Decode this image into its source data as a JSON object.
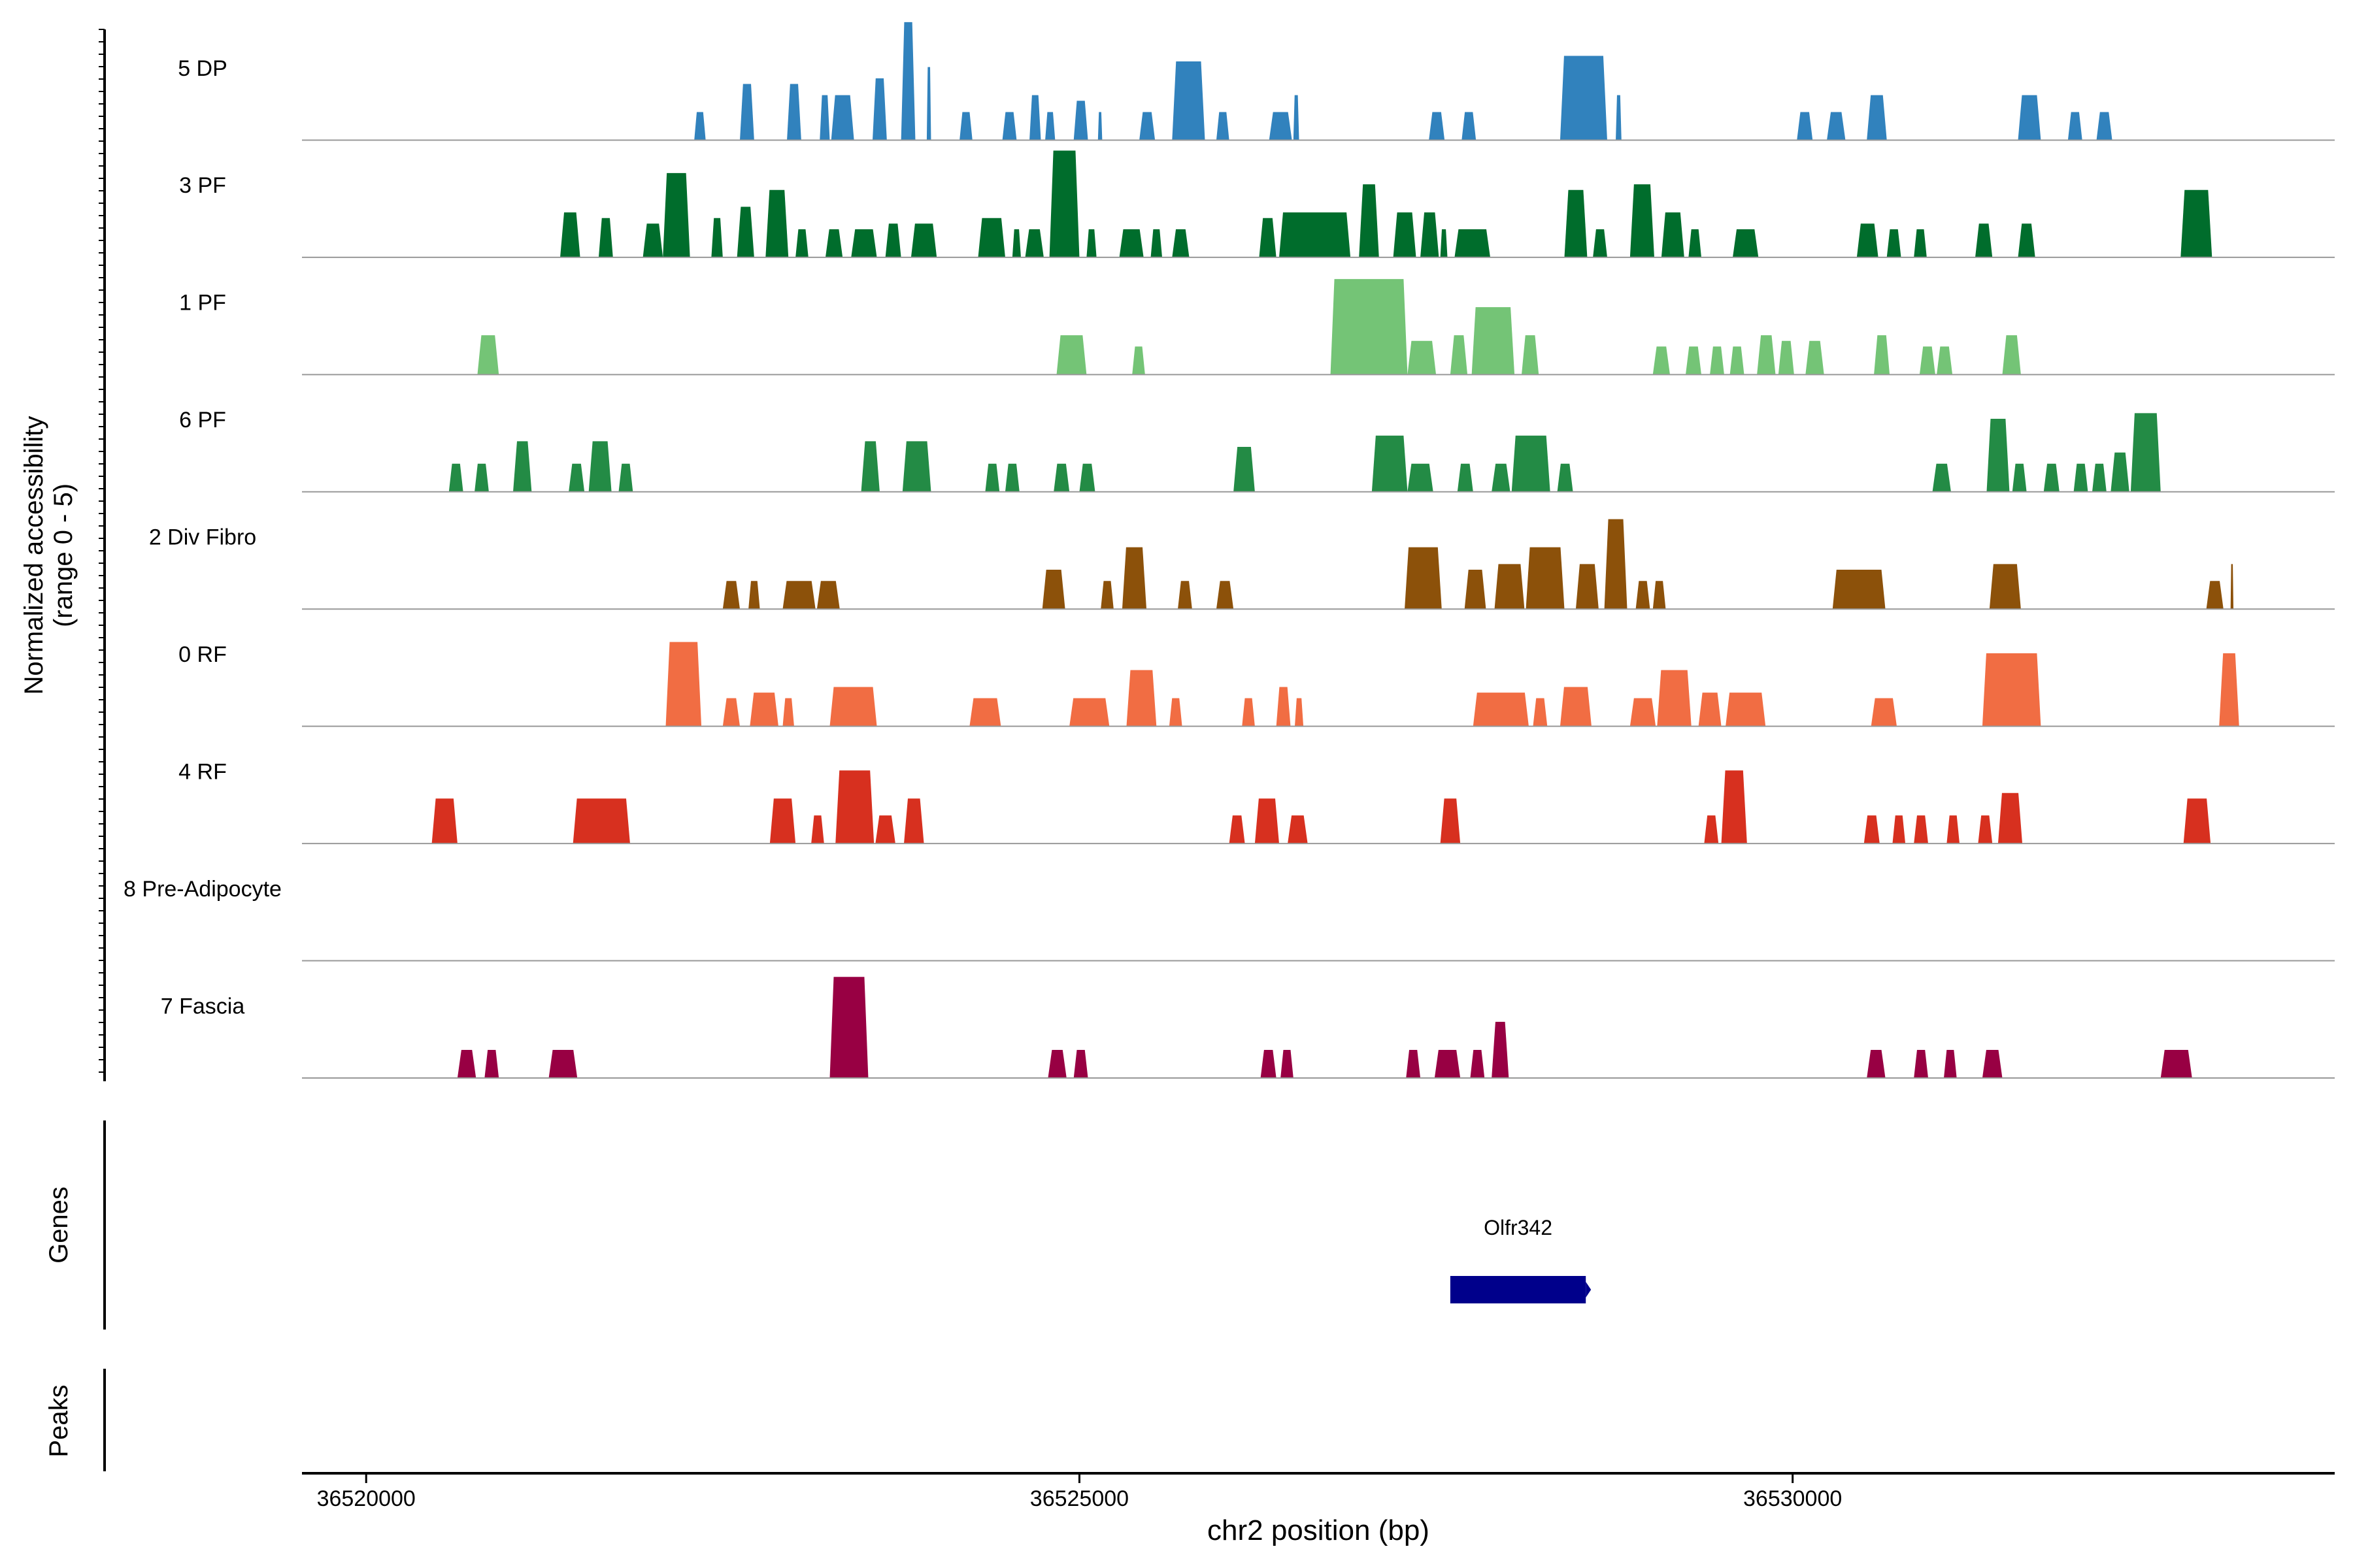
{
  "chart_data": {
    "type": "area",
    "title": "",
    "xlabel": "chr2 position (bp)",
    "ylabel": "Normalized accessibility",
    "ylabel_range": "(range 0 - 5)",
    "xlim": [
      36519550,
      36533800
    ],
    "ylim": [
      0,
      5
    ],
    "x_ticks": [
      36520000,
      36525000,
      36530000
    ],
    "x_tick_labels": [
      "36520000",
      "36525000",
      "36530000"
    ],
    "tracks": [
      {
        "name": "5 DP",
        "color": "#3182BD",
        "peaks": [
          [
            36522300,
            36522380,
            1.0
          ],
          [
            36522620,
            36522720,
            2.0
          ],
          [
            36522950,
            36523050,
            2.0
          ],
          [
            36523180,
            36523250,
            1.6
          ],
          [
            36523260,
            36523420,
            1.6
          ],
          [
            36523550,
            36523650,
            2.2
          ],
          [
            36523750,
            36523850,
            4.2
          ],
          [
            36523930,
            36523960,
            2.6
          ],
          [
            36524160,
            36524250,
            1.0
          ],
          [
            36524460,
            36524560,
            1.0
          ],
          [
            36524650,
            36524730,
            1.6
          ],
          [
            36524760,
            36524830,
            1.0
          ],
          [
            36524960,
            36525060,
            1.4
          ],
          [
            36525130,
            36525160,
            1.0
          ],
          [
            36525420,
            36525530,
            1.0
          ],
          [
            36525650,
            36525880,
            2.8
          ],
          [
            36525960,
            36526050,
            1.0
          ],
          [
            36526330,
            36526490,
            1.0
          ],
          [
            36526500,
            36526540,
            1.6
          ],
          [
            36527450,
            36527560,
            1.0
          ],
          [
            36527680,
            36527780,
            1.0
          ],
          [
            36528370,
            36528700,
            3.0
          ],
          [
            36528760,
            36528800,
            1.6
          ],
          [
            36530030,
            36530140,
            1.0
          ],
          [
            36530240,
            36530370,
            1.0
          ],
          [
            36530520,
            36530660,
            1.6
          ],
          [
            36531580,
            36531740,
            1.6
          ],
          [
            36531930,
            36532030,
            1.0
          ],
          [
            36532130,
            36532240,
            1.0
          ]
        ]
      },
      {
        "name": "3 PF",
        "color": "#006D2C",
        "peaks": [
          [
            36521360,
            36521500,
            1.6
          ],
          [
            36521630,
            36521730,
            1.4
          ],
          [
            36521940,
            36522080,
            1.2
          ],
          [
            36522080,
            36522270,
            3.0
          ],
          [
            36522420,
            36522500,
            1.4
          ],
          [
            36522600,
            36522720,
            1.8
          ],
          [
            36522800,
            36522960,
            2.4
          ],
          [
            36523010,
            36523100,
            1.0
          ],
          [
            36523220,
            36523340,
            1.0
          ],
          [
            36523400,
            36523580,
            1.0
          ],
          [
            36523640,
            36523750,
            1.2
          ],
          [
            36523820,
            36524000,
            1.2
          ],
          [
            36524290,
            36524480,
            1.4
          ],
          [
            36524530,
            36524590,
            1.0
          ],
          [
            36524620,
            36524750,
            1.0
          ],
          [
            36524790,
            36525000,
            3.8
          ],
          [
            36525050,
            36525120,
            1.0
          ],
          [
            36525280,
            36525450,
            1.0
          ],
          [
            36525500,
            36525580,
            1.0
          ],
          [
            36525650,
            36525770,
            1.0
          ],
          [
            36526260,
            36526380,
            1.4
          ],
          [
            36526400,
            36526900,
            1.6
          ],
          [
            36526960,
            36527100,
            2.6
          ],
          [
            36527200,
            36527360,
            1.6
          ],
          [
            36527390,
            36527520,
            1.6
          ],
          [
            36527530,
            36527580,
            1.0
          ],
          [
            36527630,
            36527880,
            1.0
          ],
          [
            36528400,
            36528560,
            2.4
          ],
          [
            36528600,
            36528700,
            1.0
          ],
          [
            36528860,
            36529030,
            2.6
          ],
          [
            36529080,
            36529240,
            1.6
          ],
          [
            36529270,
            36529360,
            1.0
          ],
          [
            36529580,
            36529760,
            1.0
          ],
          [
            36530450,
            36530600,
            1.2
          ],
          [
            36530660,
            36530760,
            1.0
          ],
          [
            36530850,
            36530940,
            1.0
          ],
          [
            36531280,
            36531400,
            1.2
          ],
          [
            36531580,
            36531700,
            1.2
          ],
          [
            36532720,
            36532940,
            2.4
          ]
        ]
      },
      {
        "name": "1 PF",
        "color": "#74C476",
        "peaks": [
          [
            36520780,
            36520930,
            1.4
          ],
          [
            36524840,
            36525050,
            1.4
          ],
          [
            36525370,
            36525460,
            1.0
          ],
          [
            36526760,
            36527300,
            3.4
          ],
          [
            36527300,
            36527500,
            1.2
          ],
          [
            36527600,
            36527720,
            1.4
          ],
          [
            36527750,
            36528050,
            2.4
          ],
          [
            36528100,
            36528220,
            1.4
          ],
          [
            36529020,
            36529140,
            1.0
          ],
          [
            36529250,
            36529360,
            1.0
          ],
          [
            36529420,
            36529520,
            1.0
          ],
          [
            36529560,
            36529660,
            1.0
          ],
          [
            36529750,
            36529880,
            1.4
          ],
          [
            36529900,
            36530010,
            1.2
          ],
          [
            36530090,
            36530220,
            1.2
          ],
          [
            36530570,
            36530680,
            1.4
          ],
          [
            36530890,
            36531000,
            1.0
          ],
          [
            36531010,
            36531120,
            1.0
          ],
          [
            36531470,
            36531600,
            1.4
          ]
        ]
      },
      {
        "name": "6 PF",
        "color": "#238B45",
        "peaks": [
          [
            36520580,
            36520680,
            1.0
          ],
          [
            36520760,
            36520860,
            1.0
          ],
          [
            36521030,
            36521160,
            1.8
          ],
          [
            36521420,
            36521530,
            1.0
          ],
          [
            36521560,
            36521720,
            1.8
          ],
          [
            36521770,
            36521870,
            1.0
          ],
          [
            36523470,
            36523600,
            1.8
          ],
          [
            36523760,
            36523960,
            1.8
          ],
          [
            36524340,
            36524440,
            1.0
          ],
          [
            36524480,
            36524580,
            1.0
          ],
          [
            36524820,
            36524930,
            1.0
          ],
          [
            36525000,
            36525110,
            1.0
          ],
          [
            36526080,
            36526230,
            1.6
          ],
          [
            36527050,
            36527300,
            2.0
          ],
          [
            36527300,
            36527480,
            1.0
          ],
          [
            36527650,
            36527760,
            1.0
          ],
          [
            36527890,
            36528020,
            1.0
          ],
          [
            36528030,
            36528300,
            2.0
          ],
          [
            36528350,
            36528460,
            1.0
          ],
          [
            36530980,
            36531110,
            1.0
          ],
          [
            36531360,
            36531520,
            2.6
          ],
          [
            36531540,
            36531640,
            1.0
          ],
          [
            36531760,
            36531870,
            1.0
          ],
          [
            36531970,
            36532070,
            1.0
          ],
          [
            36532100,
            36532200,
            1.0
          ],
          [
            36532230,
            36532360,
            1.4
          ],
          [
            36532370,
            36532580,
            2.8
          ]
        ]
      },
      {
        "name": "2 Div Fibro",
        "color": "#8C510A",
        "peaks": [
          [
            36522500,
            36522620,
            1.0
          ],
          [
            36522680,
            36522760,
            1.0
          ],
          [
            36522920,
            36523150,
            1.0
          ],
          [
            36523160,
            36523320,
            1.0
          ],
          [
            36524740,
            36524900,
            1.4
          ],
          [
            36525150,
            36525240,
            1.0
          ],
          [
            36525300,
            36525470,
            2.2
          ],
          [
            36525690,
            36525790,
            1.0
          ],
          [
            36525960,
            36526080,
            1.0
          ],
          [
            36527280,
            36527540,
            2.2
          ],
          [
            36527700,
            36527850,
            1.4
          ],
          [
            36527910,
            36528120,
            1.6
          ],
          [
            36528130,
            36528400,
            2.2
          ],
          [
            36528480,
            36528640,
            1.6
          ],
          [
            36528680,
            36528840,
            3.2
          ],
          [
            36528900,
            36529000,
            1.0
          ],
          [
            36529020,
            36529110,
            1.0
          ],
          [
            36530280,
            36530650,
            1.4
          ],
          [
            36531380,
            36531600,
            1.6
          ],
          [
            36532900,
            36533020,
            1.0
          ],
          [
            36533070,
            36533090,
            1.6
          ]
        ]
      },
      {
        "name": "0 RF",
        "color": "#F16D43",
        "peaks": [
          [
            36522100,
            36522350,
            3.0
          ],
          [
            36522500,
            36522620,
            1.0
          ],
          [
            36522690,
            36522890,
            1.2
          ],
          [
            36522920,
            36523000,
            1.0
          ],
          [
            36523250,
            36523580,
            1.4
          ],
          [
            36524230,
            36524450,
            1.0
          ],
          [
            36524930,
            36525210,
            1.0
          ],
          [
            36525330,
            36525540,
            2.0
          ],
          [
            36525630,
            36525720,
            1.0
          ],
          [
            36526140,
            36526230,
            1.0
          ],
          [
            36526380,
            36526480,
            1.4
          ],
          [
            36526510,
            36526570,
            1.0
          ],
          [
            36527760,
            36528150,
            1.2
          ],
          [
            36528180,
            36528280,
            1.0
          ],
          [
            36528370,
            36528590,
            1.4
          ],
          [
            36528860,
            36529040,
            1.0
          ],
          [
            36529050,
            36529290,
            2.0
          ],
          [
            36529340,
            36529500,
            1.2
          ],
          [
            36529530,
            36529810,
            1.2
          ],
          [
            36530550,
            36530730,
            1.0
          ],
          [
            36531330,
            36531740,
            2.6
          ],
          [
            36532990,
            36533130,
            2.6
          ]
        ]
      },
      {
        "name": "4 RF",
        "color": "#D7301F",
        "peaks": [
          [
            36520460,
            36520640,
            1.6
          ],
          [
            36521450,
            36521850,
            1.6
          ],
          [
            36522830,
            36523010,
            1.6
          ],
          [
            36523120,
            36523210,
            1.0
          ],
          [
            36523290,
            36523560,
            2.6
          ],
          [
            36523570,
            36523710,
            1.0
          ],
          [
            36523770,
            36523910,
            1.6
          ],
          [
            36526050,
            36526160,
            1.0
          ],
          [
            36526230,
            36526400,
            1.6
          ],
          [
            36526460,
            36526600,
            1.0
          ],
          [
            36527530,
            36527670,
            1.6
          ],
          [
            36529380,
            36529480,
            1.0
          ],
          [
            36529500,
            36529680,
            2.6
          ],
          [
            36530500,
            36530610,
            1.0
          ],
          [
            36530700,
            36530790,
            1.0
          ],
          [
            36530850,
            36530950,
            1.0
          ],
          [
            36531080,
            36531170,
            1.0
          ],
          [
            36531300,
            36531400,
            1.0
          ],
          [
            36531440,
            36531610,
            1.8
          ],
          [
            36532740,
            36532930,
            1.6
          ]
        ]
      },
      {
        "name": "8 Pre-Adipocyte",
        "color": "#AE017E",
        "peaks": []
      },
      {
        "name": "7 Fascia",
        "color": "#980043",
        "peaks": [
          [
            36520640,
            36520770,
            1.0
          ],
          [
            36520830,
            36520930,
            1.0
          ],
          [
            36521280,
            36521480,
            1.0
          ],
          [
            36523250,
            36523520,
            3.6
          ],
          [
            36524780,
            36524910,
            1.0
          ],
          [
            36524960,
            36525060,
            1.0
          ],
          [
            36526270,
            36526380,
            1.0
          ],
          [
            36526410,
            36526500,
            1.0
          ],
          [
            36527290,
            36527390,
            1.0
          ],
          [
            36527490,
            36527670,
            1.0
          ],
          [
            36527740,
            36527840,
            1.0
          ],
          [
            36527890,
            36528010,
            2.0
          ],
          [
            36530520,
            36530650,
            1.0
          ],
          [
            36530850,
            36530950,
            1.0
          ],
          [
            36531060,
            36531150,
            1.0
          ],
          [
            36531330,
            36531470,
            1.0
          ],
          [
            36532580,
            36532800,
            1.0
          ]
        ]
      }
    ],
    "genes": [
      {
        "name": "Olfr342",
        "start": 36527600,
        "end": 36528550,
        "strand": "+",
        "color": "#00008B"
      }
    ],
    "panel_labels": {
      "genes": "Genes",
      "peaks": "Peaks"
    }
  }
}
